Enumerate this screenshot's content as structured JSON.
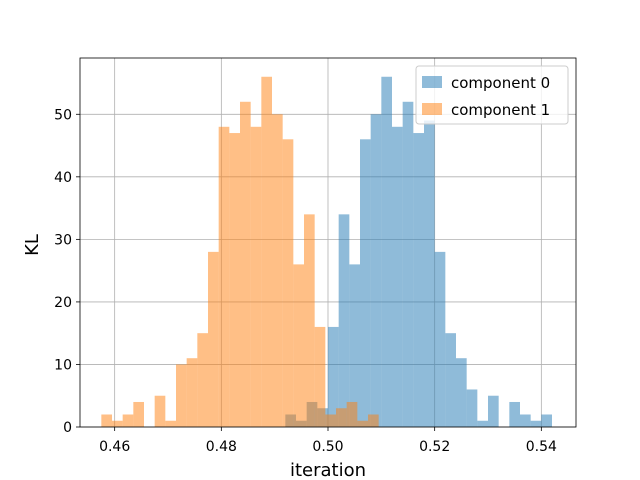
{
  "chart_data": {
    "type": "histogram",
    "xlabel": "iteration",
    "ylabel": "KL",
    "xlim": [
      0.4535,
      0.5465
    ],
    "ylim": [
      0,
      59
    ],
    "xticks": [
      0.46,
      0.48,
      0.5,
      0.52,
      0.54
    ],
    "xtick_labels": [
      "0.46",
      "0.48",
      "0.50",
      "0.52",
      "0.54"
    ],
    "yticks": [
      0,
      10,
      20,
      30,
      40,
      50
    ],
    "ytick_labels": [
      "0",
      "10",
      "20",
      "30",
      "40",
      "50"
    ],
    "grid": true,
    "legend_position": "top-right",
    "series": [
      {
        "name": "component 0",
        "color": "#1f77b4",
        "opacity": 0.5,
        "bins": [
          {
            "x0": 0.492,
            "x1": 0.494,
            "count": 2
          },
          {
            "x0": 0.494,
            "x1": 0.496,
            "count": 1
          },
          {
            "x0": 0.496,
            "x1": 0.498,
            "count": 4
          },
          {
            "x0": 0.498,
            "x1": 0.5,
            "count": 3
          },
          {
            "x0": 0.5,
            "x1": 0.502,
            "count": 16
          },
          {
            "x0": 0.502,
            "x1": 0.504,
            "count": 34
          },
          {
            "x0": 0.504,
            "x1": 0.506,
            "count": 26
          },
          {
            "x0": 0.506,
            "x1": 0.508,
            "count": 46
          },
          {
            "x0": 0.508,
            "x1": 0.51,
            "count": 50
          },
          {
            "x0": 0.51,
            "x1": 0.512,
            "count": 56
          },
          {
            "x0": 0.512,
            "x1": 0.514,
            "count": 48
          },
          {
            "x0": 0.514,
            "x1": 0.516,
            "count": 52
          },
          {
            "x0": 0.516,
            "x1": 0.518,
            "count": 47
          },
          {
            "x0": 0.518,
            "x1": 0.52,
            "count": 49
          },
          {
            "x0": 0.52,
            "x1": 0.522,
            "count": 28
          },
          {
            "x0": 0.522,
            "x1": 0.524,
            "count": 15
          },
          {
            "x0": 0.524,
            "x1": 0.526,
            "count": 11
          },
          {
            "x0": 0.526,
            "x1": 0.528,
            "count": 6
          },
          {
            "x0": 0.528,
            "x1": 0.53,
            "count": 1
          },
          {
            "x0": 0.53,
            "x1": 0.532,
            "count": 5
          },
          {
            "x0": 0.534,
            "x1": 0.536,
            "count": 4
          },
          {
            "x0": 0.536,
            "x1": 0.538,
            "count": 2
          },
          {
            "x0": 0.538,
            "x1": 0.54,
            "count": 1
          },
          {
            "x0": 0.54,
            "x1": 0.542,
            "count": 2
          }
        ]
      },
      {
        "name": "component 1",
        "color": "#ff7f0e",
        "opacity": 0.5,
        "bins": [
          {
            "x0": 0.4575,
            "x1": 0.4595,
            "count": 2
          },
          {
            "x0": 0.4595,
            "x1": 0.4615,
            "count": 1
          },
          {
            "x0": 0.4615,
            "x1": 0.4635,
            "count": 2
          },
          {
            "x0": 0.4635,
            "x1": 0.4655,
            "count": 4
          },
          {
            "x0": 0.4675,
            "x1": 0.4695,
            "count": 5
          },
          {
            "x0": 0.4695,
            "x1": 0.4715,
            "count": 1
          },
          {
            "x0": 0.4715,
            "x1": 0.4735,
            "count": 10
          },
          {
            "x0": 0.4735,
            "x1": 0.4755,
            "count": 11
          },
          {
            "x0": 0.4755,
            "x1": 0.4775,
            "count": 15
          },
          {
            "x0": 0.4775,
            "x1": 0.4795,
            "count": 28
          },
          {
            "x0": 0.4795,
            "x1": 0.4815,
            "count": 48
          },
          {
            "x0": 0.4815,
            "x1": 0.4835,
            "count": 47
          },
          {
            "x0": 0.4835,
            "x1": 0.4855,
            "count": 52
          },
          {
            "x0": 0.4855,
            "x1": 0.4875,
            "count": 48
          },
          {
            "x0": 0.4875,
            "x1": 0.4895,
            "count": 56
          },
          {
            "x0": 0.4895,
            "x1": 0.4915,
            "count": 50
          },
          {
            "x0": 0.4915,
            "x1": 0.4935,
            "count": 46
          },
          {
            "x0": 0.4935,
            "x1": 0.4955,
            "count": 26
          },
          {
            "x0": 0.4955,
            "x1": 0.4975,
            "count": 34
          },
          {
            "x0": 0.4975,
            "x1": 0.4995,
            "count": 16
          },
          {
            "x0": 0.4995,
            "x1": 0.5015,
            "count": 2
          },
          {
            "x0": 0.5015,
            "x1": 0.5035,
            "count": 3
          },
          {
            "x0": 0.5035,
            "x1": 0.5055,
            "count": 4
          },
          {
            "x0": 0.5055,
            "x1": 0.5075,
            "count": 1
          },
          {
            "x0": 0.5075,
            "x1": 0.5095,
            "count": 2
          }
        ]
      }
    ]
  }
}
